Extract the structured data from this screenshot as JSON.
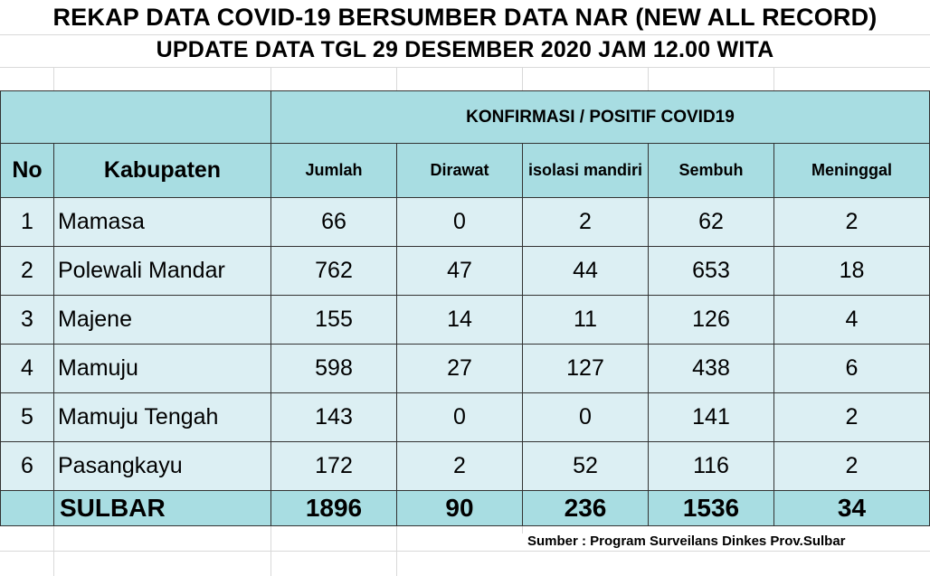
{
  "title": "REKAP DATA COVID-19 BERSUMBER DATA NAR (NEW ALL RECORD)",
  "subtitle": "UPDATE DATA TGL 29  DESEMBER 2020    JAM  12.00 WITA",
  "table": {
    "group_header": "KONFIRMASI / POSITIF COVID19",
    "headers": {
      "no": "No",
      "kabupaten": "Kabupaten",
      "jumlah": "Jumlah",
      "dirawat": "Dirawat",
      "isolasi": "isolasi mandiri",
      "sembuh": "Sembuh",
      "meninggal": "Meninggal"
    },
    "rows": [
      {
        "no": "1",
        "kabupaten": "Mamasa",
        "jumlah": "66",
        "dirawat": "0",
        "isolasi": "2",
        "sembuh": "62",
        "meninggal": "2"
      },
      {
        "no": "2",
        "kabupaten": "Polewali Mandar",
        "jumlah": "762",
        "dirawat": "47",
        "isolasi": "44",
        "sembuh": "653",
        "meninggal": "18"
      },
      {
        "no": "3",
        "kabupaten": "Majene",
        "jumlah": "155",
        "dirawat": "14",
        "isolasi": "11",
        "sembuh": "126",
        "meninggal": "4"
      },
      {
        "no": "4",
        "kabupaten": "Mamuju",
        "jumlah": "598",
        "dirawat": "27",
        "isolasi": "127",
        "sembuh": "438",
        "meninggal": "6"
      },
      {
        "no": "5",
        "kabupaten": "Mamuju Tengah",
        "jumlah": "143",
        "dirawat": "0",
        "isolasi": "0",
        "sembuh": "141",
        "meninggal": "2"
      },
      {
        "no": "6",
        "kabupaten": "Pasangkayu",
        "jumlah": "172",
        "dirawat": "2",
        "isolasi": "52",
        "sembuh": "116",
        "meninggal": "2"
      }
    ],
    "total": {
      "label": "SULBAR",
      "jumlah": "1896",
      "dirawat": "90",
      "isolasi": "236",
      "sembuh": "1536",
      "meninggal": "34"
    }
  },
  "source": "Sumber : Program Surveilans Dinkes Prov.Sulbar",
  "colors": {
    "header_fill": "#a8dde2",
    "body_fill": "#dceff3",
    "gridline": "#d9d9d9",
    "border": "#333333"
  }
}
